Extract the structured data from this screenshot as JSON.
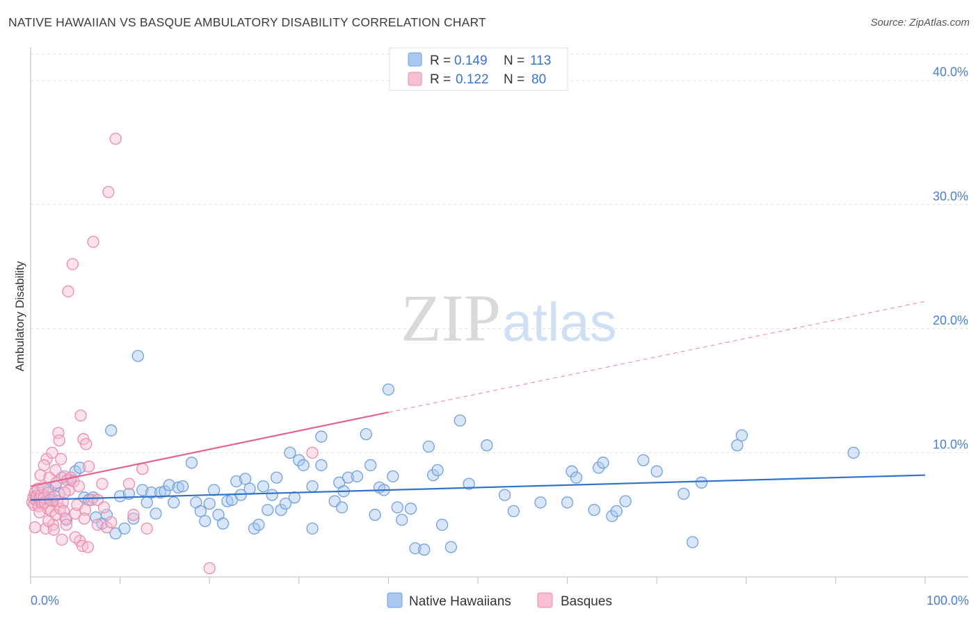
{
  "title": "NATIVE HAWAIIAN VS BASQUE AMBULATORY DISABILITY CORRELATION CHART",
  "source": "Source: ZipAtlas.com",
  "watermark": {
    "zip": "ZIP",
    "atlas": "atlas"
  },
  "colors": {
    "blue_fill": "#a9c8f0",
    "blue_stroke": "#6f9fe0",
    "blue_line": "#2f72cc",
    "pink_fill": "#f7bfd2",
    "pink_stroke": "#ec8bab",
    "pink_line": "#e4628f",
    "tick_text": "#4a7fd0",
    "grid": "#dddddd"
  },
  "stats_legend": [
    {
      "r_label": "R = ",
      "r_value": "0.149",
      "n_label": "N = ",
      "n_value": "113"
    },
    {
      "r_label": "R = ",
      "r_value": "0.122",
      "n_label": "N = ",
      "n_value": "80"
    }
  ],
  "chart_data": {
    "type": "scatter",
    "title": "NATIVE HAWAIIAN VS BASQUE AMBULATORY DISABILITY CORRELATION CHART",
    "xlabel": "",
    "ylabel": "Ambulatory Disability",
    "xlim": [
      0,
      100
    ],
    "ylim": [
      0,
      42
    ],
    "x_tick_labels": [
      {
        "value": 0,
        "label": "0.0%"
      },
      {
        "value": 100,
        "label": "100.0%"
      }
    ],
    "y_tick_labels": [
      {
        "value": 10,
        "label": "10.0%"
      },
      {
        "value": 20,
        "label": "20.0%"
      },
      {
        "value": 30,
        "label": "30.0%"
      },
      {
        "value": 40,
        "label": "40.0%"
      }
    ],
    "x_minor_ticks": [
      0,
      10,
      20,
      30,
      40,
      50,
      60,
      70,
      80,
      90,
      100
    ],
    "grid": true,
    "legend": [
      "Native Hawaiians",
      "Basques"
    ],
    "series": [
      {
        "name": "Native Hawaiians",
        "r": 0.149,
        "n": 113,
        "trend": {
          "x0": 0,
          "y0": 6.2,
          "x1": 100,
          "y1": 8.2,
          "dashed_from": null
        },
        "points": [
          [
            0.5,
            6.5
          ],
          [
            0.8,
            6.2
          ],
          [
            1.0,
            6.8
          ],
          [
            1.2,
            6.0
          ],
          [
            1.5,
            6.6
          ],
          [
            1.8,
            6.3
          ],
          [
            2.0,
            7.0
          ],
          [
            2.3,
            6.4
          ],
          [
            2.5,
            6.1
          ],
          [
            2.8,
            7.3
          ],
          [
            3.2,
            6.7
          ],
          [
            3.5,
            8.0
          ],
          [
            4.0,
            4.6
          ],
          [
            4.5,
            7.8
          ],
          [
            5.0,
            8.5
          ],
          [
            5.5,
            8.8
          ],
          [
            6.0,
            6.4
          ],
          [
            6.5,
            6.2
          ],
          [
            7.0,
            6.4
          ],
          [
            7.3,
            4.8
          ],
          [
            8.0,
            4.3
          ],
          [
            8.5,
            5.0
          ],
          [
            9.0,
            11.8
          ],
          [
            9.5,
            3.5
          ],
          [
            10.0,
            6.5
          ],
          [
            10.5,
            3.9
          ],
          [
            11.0,
            6.7
          ],
          [
            11.5,
            4.7
          ],
          [
            12.0,
            17.8
          ],
          [
            12.5,
            7.0
          ],
          [
            13.0,
            6.0
          ],
          [
            13.5,
            6.8
          ],
          [
            14.0,
            5.1
          ],
          [
            14.5,
            6.8
          ],
          [
            15.0,
            6.9
          ],
          [
            15.5,
            7.4
          ],
          [
            16.0,
            6.0
          ],
          [
            16.5,
            7.2
          ],
          [
            17.0,
            7.3
          ],
          [
            18.0,
            9.2
          ],
          [
            18.5,
            6.0
          ],
          [
            19.0,
            5.3
          ],
          [
            19.5,
            4.5
          ],
          [
            20.0,
            5.9
          ],
          [
            20.5,
            7.0
          ],
          [
            21.0,
            5.0
          ],
          [
            21.5,
            4.3
          ],
          [
            22.0,
            6.1
          ],
          [
            22.5,
            6.2
          ],
          [
            23.0,
            7.7
          ],
          [
            23.5,
            6.6
          ],
          [
            24.0,
            7.9
          ],
          [
            24.5,
            7.1
          ],
          [
            25.0,
            3.9
          ],
          [
            25.5,
            4.2
          ],
          [
            26.0,
            7.3
          ],
          [
            26.5,
            5.4
          ],
          [
            27.0,
            6.6
          ],
          [
            27.5,
            8.0
          ],
          [
            28.0,
            5.4
          ],
          [
            28.5,
            5.9
          ],
          [
            29.0,
            10.0
          ],
          [
            29.5,
            6.4
          ],
          [
            30.0,
            9.4
          ],
          [
            30.5,
            9.0
          ],
          [
            31.5,
            7.3
          ],
          [
            31.5,
            3.9
          ],
          [
            32.5,
            9.0
          ],
          [
            32.5,
            11.3
          ],
          [
            34.0,
            6.1
          ],
          [
            34.5,
            7.6
          ],
          [
            34.8,
            5.6
          ],
          [
            35.0,
            6.9
          ],
          [
            35.5,
            8.0
          ],
          [
            36.5,
            8.1
          ],
          [
            37.5,
            11.5
          ],
          [
            38.0,
            9.0
          ],
          [
            38.5,
            5.0
          ],
          [
            39.0,
            7.2
          ],
          [
            39.5,
            7.0
          ],
          [
            40.0,
            15.1
          ],
          [
            40.5,
            8.1
          ],
          [
            41.0,
            5.6
          ],
          [
            41.5,
            4.6
          ],
          [
            42.5,
            5.5
          ],
          [
            43.0,
            2.3
          ],
          [
            44.0,
            2.2
          ],
          [
            44.5,
            10.5
          ],
          [
            45.0,
            8.2
          ],
          [
            45.5,
            8.6
          ],
          [
            46.0,
            4.2
          ],
          [
            47.0,
            2.4
          ],
          [
            48.0,
            12.6
          ],
          [
            49.0,
            7.5
          ],
          [
            51.0,
            10.6
          ],
          [
            53.0,
            6.6
          ],
          [
            54.0,
            5.3
          ],
          [
            57.0,
            6.0
          ],
          [
            60.0,
            6.0
          ],
          [
            60.5,
            8.5
          ],
          [
            61.0,
            8.0
          ],
          [
            63.0,
            5.4
          ],
          [
            63.5,
            8.8
          ],
          [
            64.0,
            9.2
          ],
          [
            65.0,
            4.9
          ],
          [
            65.5,
            5.3
          ],
          [
            66.5,
            6.1
          ],
          [
            68.5,
            9.4
          ],
          [
            70.0,
            8.5
          ],
          [
            73.0,
            6.7
          ],
          [
            74.0,
            2.8
          ],
          [
            75.0,
            7.6
          ],
          [
            79.0,
            10.6
          ],
          [
            79.5,
            11.4
          ],
          [
            92.0,
            10.0
          ]
        ]
      },
      {
        "name": "Basques",
        "r": 0.122,
        "n": 80,
        "trend": {
          "x0": 0,
          "y0": 7.3,
          "x1": 100,
          "y1": 22.2,
          "solid_to": 40
        },
        "points": [
          [
            0.2,
            6.0
          ],
          [
            0.3,
            6.4
          ],
          [
            0.4,
            5.8
          ],
          [
            0.5,
            6.8
          ],
          [
            0.6,
            6.2
          ],
          [
            0.7,
            6.5
          ],
          [
            0.8,
            7.1
          ],
          [
            0.9,
            5.7
          ],
          [
            1.0,
            6.3
          ],
          [
            1.1,
            8.2
          ],
          [
            1.2,
            6.6
          ],
          [
            1.3,
            5.9
          ],
          [
            1.4,
            7.2
          ],
          [
            1.5,
            6.4
          ],
          [
            1.6,
            6.0
          ],
          [
            1.7,
            3.9
          ],
          [
            1.8,
            9.5
          ],
          [
            1.9,
            5.5
          ],
          [
            2.0,
            6.8
          ],
          [
            2.1,
            8.0
          ],
          [
            2.2,
            6.2
          ],
          [
            2.3,
            5.3
          ],
          [
            2.4,
            10.0
          ],
          [
            2.5,
            4.2
          ],
          [
            2.6,
            3.8
          ],
          [
            2.7,
            6.5
          ],
          [
            2.8,
            5.0
          ],
          [
            2.9,
            7.6
          ],
          [
            3.0,
            6.1
          ],
          [
            3.1,
            11.6
          ],
          [
            3.2,
            11.0
          ],
          [
            3.3,
            5.5
          ],
          [
            3.4,
            9.5
          ],
          [
            3.5,
            3.0
          ],
          [
            3.6,
            6.0
          ],
          [
            3.7,
            5.3
          ],
          [
            3.8,
            8.1
          ],
          [
            3.9,
            4.7
          ],
          [
            4.0,
            4.2
          ],
          [
            4.1,
            7.8
          ],
          [
            4.3,
            7.0
          ],
          [
            4.5,
            8.0
          ],
          [
            4.7,
            25.2
          ],
          [
            4.8,
            7.7
          ],
          [
            5.0,
            5.1
          ],
          [
            5.2,
            5.8
          ],
          [
            5.4,
            7.3
          ],
          [
            5.5,
            2.9
          ],
          [
            5.6,
            13.0
          ],
          [
            5.8,
            2.5
          ],
          [
            5.9,
            11.1
          ],
          [
            6.1,
            5.4
          ],
          [
            6.2,
            10.7
          ],
          [
            6.4,
            2.4
          ],
          [
            6.5,
            8.9
          ],
          [
            6.8,
            6.2
          ],
          [
            7.0,
            27.0
          ],
          [
            7.5,
            4.2
          ],
          [
            8.0,
            7.5
          ],
          [
            8.5,
            4.0
          ],
          [
            8.7,
            31.0
          ],
          [
            9.0,
            4.4
          ],
          [
            9.5,
            35.3
          ],
          [
            11.0,
            7.5
          ],
          [
            11.5,
            5.0
          ],
          [
            12.5,
            8.7
          ],
          [
            13.0,
            3.9
          ],
          [
            20.0,
            0.7
          ],
          [
            31.5,
            10.0
          ],
          [
            4.2,
            23.0
          ],
          [
            0.5,
            4.0
          ],
          [
            1.5,
            9.0
          ],
          [
            2.0,
            4.5
          ],
          [
            3.8,
            6.8
          ],
          [
            5.0,
            3.2
          ],
          [
            6.0,
            4.7
          ],
          [
            7.5,
            6.2
          ],
          [
            8.2,
            5.6
          ],
          [
            1.0,
            5.2
          ],
          [
            2.8,
            8.6
          ]
        ]
      }
    ]
  }
}
